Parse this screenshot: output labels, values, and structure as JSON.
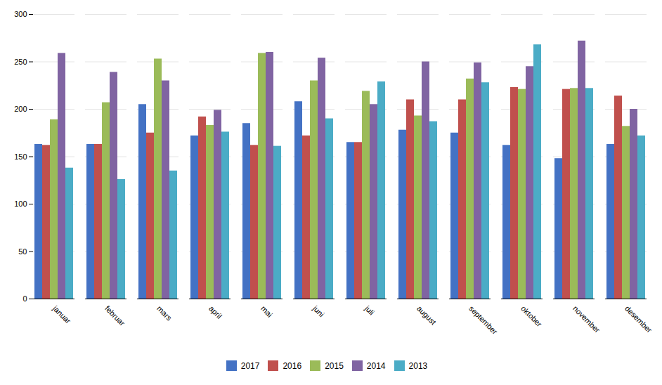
{
  "chart_data": {
    "type": "bar",
    "categories": [
      "januar",
      "februar",
      "mars",
      "april",
      "mai",
      "juni",
      "juli",
      "august",
      "september",
      "oktober",
      "november",
      "desember"
    ],
    "series": [
      {
        "name": "2017",
        "color": "#4472C4",
        "values": [
          163,
          163,
          205,
          172,
          185,
          208,
          165,
          178,
          175,
          162,
          148,
          163
        ]
      },
      {
        "name": "2016",
        "color": "#C0504D",
        "values": [
          162,
          163,
          175,
          192,
          162,
          172,
          165,
          210,
          210,
          223,
          221,
          214
        ]
      },
      {
        "name": "2015",
        "color": "#9BBB59",
        "values": [
          189,
          207,
          253,
          183,
          259,
          230,
          219,
          193,
          232,
          221,
          222,
          182
        ]
      },
      {
        "name": "2014",
        "color": "#8064A2",
        "values": [
          259,
          239,
          230,
          199,
          260,
          254,
          205,
          250,
          249,
          245,
          272,
          200
        ]
      },
      {
        "name": "2013",
        "color": "#4BACC6",
        "values": [
          138,
          126,
          135,
          176,
          161,
          190,
          229,
          187,
          228,
          268,
          222,
          172
        ]
      }
    ],
    "ylim": [
      0,
      300
    ],
    "yticks": [
      0,
      50,
      100,
      150,
      200,
      250,
      300
    ],
    "grid": true,
    "legend": "bottom"
  }
}
